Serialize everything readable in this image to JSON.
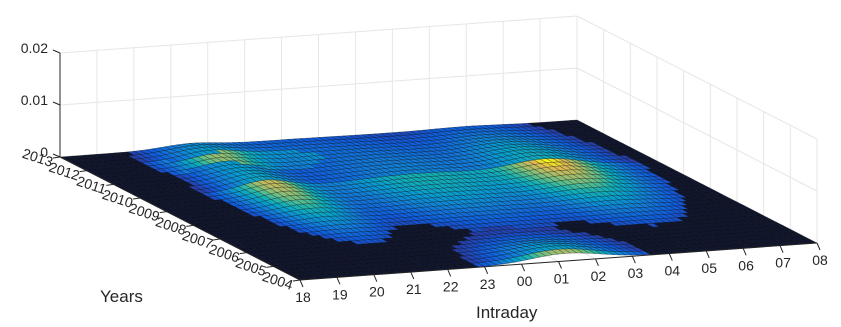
{
  "chart_data": {
    "type": "surface",
    "title": "",
    "xlabel": "Intraday",
    "ylabel": "Years",
    "zlabel": "",
    "x_ticks": [
      "18",
      "19",
      "20",
      "21",
      "22",
      "23",
      "00",
      "01",
      "02",
      "03",
      "04",
      "05",
      "06",
      "07",
      "08"
    ],
    "y_ticks": [
      "2013",
      "2012",
      "2011",
      "2010",
      "2009",
      "2008",
      "2007",
      "2006",
      "2005",
      "2004"
    ],
    "z_ticks": [
      "0",
      "0.01",
      "0.02"
    ],
    "zlim": [
      0,
      0.02
    ],
    "grid": true,
    "colormap": "parula",
    "colors": {
      "background": "#ffffff",
      "grid": "#e6e6e6",
      "axis": "#262626",
      "text": "#262626",
      "mesh_edge": "#000000"
    },
    "description_values": {
      "peak_value_approx": 0.004,
      "ridge_hours": [
        "22",
        "23",
        "04",
        "05",
        "06"
      ],
      "peak_year": "2004"
    }
  }
}
